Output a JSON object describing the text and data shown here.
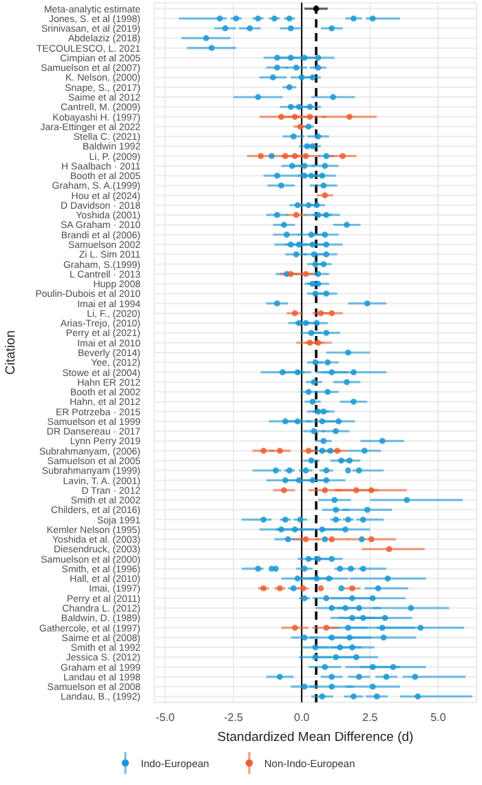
{
  "chart_data": {
    "type": "scatter",
    "orientation": "horizontal",
    "xlabel": "Standardized Mean Difference (d)",
    "ylabel": "Citation",
    "categories": [
      "Meta-analytic estimate",
      "Jones, S. et al (1998)",
      "Srinivasan, et al (2019)",
      "Abdelaziz (2018)",
      "TECOULESCO, L. 2021",
      "Cimpian et al 2005",
      "Samuelson et al (2007)",
      "K. Nelson, (2000)",
      "Snape, S., (2017)",
      "Saime et al 2012",
      "Cantrell, M. (2009)",
      "Kobayashi H. (1997)",
      "Jara-Ettinger et al 2022",
      "Stella C. (2021)",
      "Baldwin 1992",
      "Li, P. (2009)",
      "H Saalbach · 2011",
      "Booth et al 2005",
      "Graham, S. A.(1999)",
      "Hou et al (2024)",
      "D Davidson · 2018",
      "Yoshida (2001)",
      "SA Graham · 2010",
      "Brandi et al (2006)",
      "Samuelson 2002",
      "Zi L. Sim 2011",
      "Graham, S.(1999)",
      "L Cantrell · 2013",
      "Hupp 2008",
      "Poulin-Dubois et al 2010",
      "Imai et al 1994",
      "Li, F., (2020)",
      "Arias-Trejo, (2010)",
      "Perry et al (2021)",
      "Imai et al 2010",
      "Beverly (2014)",
      "Yee, (2012)",
      "Stowe et al (2004)",
      "Hahn ER 2012",
      "Booth et al 2002",
      "Hahn, et al 2012",
      "ER Potrzeba · 2015",
      "Samuelson et al 1999",
      "DR Dansereau · 2017",
      "Lynn Perry 2019",
      "Subrahmanyam, (2006)",
      "Samuelson et al 2005",
      "Subrahmanyam (1999)",
      "Lavin, T. A. (2001)",
      "D Tran · 2012",
      "Smith et al 2002",
      "Childers, et al (2016)",
      "Soja 1991",
      "Kemler Nelson (1995)",
      "Yoshida et al. (2003)",
      "Diesendruck, (2003)",
      "Samuelson et al (2000)",
      "Smith, et al (1996)",
      "Hall, et al (2010)",
      "Imai, (1997)",
      "Perry et al (2011)",
      "Chandra L. (2012)",
      "Baldwin, D. (1989)",
      "Gathercole, et al (1997)",
      "Saime et al (2008)",
      "Smith et al 1992",
      "Jessica S. (2012)",
      "Graham et al 1999",
      "Landau et al 1998",
      "Samuelson et al 2008",
      "Landau, B., (1992)"
    ],
    "xlim": [
      -5.4,
      6.4
    ],
    "xticks": [
      {
        "value": -5,
        "label": "-5.0"
      },
      {
        "value": -2.5,
        "label": "-2.5"
      },
      {
        "value": 0,
        "label": "0.0"
      },
      {
        "value": 2.5,
        "label": "2.5"
      },
      {
        "value": 5,
        "label": "5.0"
      }
    ],
    "grid": true,
    "legend": "bottom",
    "marker": "circle",
    "ref_lines": [
      {
        "axis": "x",
        "value": 0,
        "color": "#000000"
      },
      {
        "axis": "x",
        "value": 0.53,
        "color": "#000000",
        "line_style": "dashed"
      }
    ],
    "series": [
      {
        "name": "Indo-European",
        "color": "#1a98d5",
        "x": [
          "Jones, S. et al (1998)",
          "Jones, S. et al (1998)",
          "Jones, S. et al (1998)",
          "Jones, S. et al (1998)",
          "Jones, S. et al (1998)",
          "Jones, S. et al (1998)",
          "Jones, S. et al (1998)",
          "Srinivasan, et al (2019)",
          "Srinivasan, et al (2019)",
          "Srinivasan, et al (2019)",
          "Srinivasan, et al (2019)",
          "Abdelaziz (2018)",
          "TECOULESCO, L. 2021",
          "Cimpian et al 2005",
          "Cimpian et al 2005",
          "Cimpian et al 2005",
          "Cimpian et al 2005",
          "Samuelson et al (2007)",
          "Samuelson et al (2007)",
          "Samuelson et al (2007)",
          "K. Nelson, (2000)",
          "K. Nelson, (2000)",
          "K. Nelson, (2000)",
          "Snape, S., (2017)",
          "Saime et al 2012",
          "Saime et al 2012",
          "Cantrell, M. (2009)",
          "Cantrell, M. (2009)",
          "Cantrell, M. (2009)",
          "Jara-Ettinger et al 2022",
          "Stella C. (2021)",
          "Stella C. (2021)",
          "Baldwin 1992",
          "Baldwin 1992",
          "Li, P. (2009)",
          "Li, P. (2009)",
          "H Saalbach · 2011",
          "H Saalbach · 2011",
          "H Saalbach · 2011",
          "Booth et al 2005",
          "Booth et al 2005",
          "Booth et al 2005",
          "Booth et al 2005",
          "Graham, S. A.(1999)",
          "Graham, S. A.(1999)",
          "D Davidson · 2018",
          "D Davidson · 2018",
          "D Davidson · 2018",
          "Yoshida (2001)",
          "Yoshida (2001)",
          "Yoshida (2001)",
          "SA Graham · 2010",
          "SA Graham · 2010",
          "Brandi et al (2006)",
          "Brandi et al (2006)",
          "Brandi et al (2006)",
          "Samuelson 2002",
          "Samuelson 2002",
          "Samuelson 2002",
          "Samuelson 2002",
          "Zi L. Sim 2011",
          "Zi L. Sim 2011",
          "Zi L. Sim 2011",
          "Graham, S.(1999)",
          "Graham, S.(1999)",
          "L Cantrell · 2013",
          "L Cantrell · 2013",
          "Hupp 2008",
          "Hupp 2008",
          "Poulin-Dubois et al 2010",
          "Poulin-Dubois et al 2010",
          "Imai et al 1994",
          "Imai et al 1994",
          "Arias-Trejo, (2010)",
          "Arias-Trejo, (2010)",
          "Arias-Trejo, (2010)",
          "Perry et al (2021)",
          "Perry et al (2021)",
          "Beverly (2014)",
          "Yee, (2012)",
          "Yee, (2012)",
          "Stowe et al (2004)",
          "Stowe et al (2004)",
          "Stowe et al (2004)",
          "Stowe et al (2004)",
          "Hahn ER 2012",
          "Hahn ER 2012",
          "Booth et al 2002",
          "Booth et al 2002",
          "Hahn, et al 2012",
          "Hahn, et al 2012",
          "ER Potrzeba · 2015",
          "ER Potrzeba · 2015",
          "Samuelson et al 1999",
          "Samuelson et al 1999",
          "Samuelson et al 1999",
          "Samuelson et al 1999",
          "DR Dansereau · 2017",
          "DR Dansereau · 2017",
          "Lynn Perry 2019",
          "Lynn Perry 2019",
          "Subrahmanyam, (2006)",
          "Subrahmanyam, (2006)",
          "Subrahmanyam, (2006)",
          "Samuelson et al 2005",
          "Samuelson et al 2005",
          "Samuelson et al 2005",
          "Subrahmanyam (1999)",
          "Subrahmanyam (1999)",
          "Subrahmanyam (1999)",
          "Subrahmanyam (1999)",
          "Subrahmanyam (1999)",
          "Subrahmanyam (1999)",
          "Lavin, T. A. (2001)",
          "Lavin, T. A. (2001)",
          "Lavin, T. A. (2001)",
          "Lavin, T. A. (2001)",
          "Smith et al 2002",
          "Smith et al 2002",
          "Childers, et al (2016)",
          "Childers, et al (2016)",
          "Soja 1991",
          "Soja 1991",
          "Soja 1991",
          "Soja 1991",
          "Soja 1991",
          "Soja 1991",
          "Kemler Nelson (1995)",
          "Kemler Nelson (1995)",
          "Kemler Nelson (1995)",
          "Kemler Nelson (1995)",
          "Yoshida et al. (2003)",
          "Yoshida et al. (2003)",
          "Yoshida et al. (2003)",
          "Samuelson et al (2000)",
          "Samuelson et al (2000)",
          "Samuelson et al (2000)",
          "Smith, et al (1996)",
          "Smith, et al (1996)",
          "Smith, et al (1996)",
          "Smith, et al (1996)",
          "Smith, et al (1996)",
          "Smith, et al (1996)",
          "Smith, et al (1996)",
          "Hall, et al (2010)",
          "Hall, et al (2010)",
          "Hall, et al (2010)",
          "Hall, et al (2010)",
          "Imai, (1997)",
          "Imai, (1997)",
          "Imai, (1997)",
          "Perry et al (2011)",
          "Perry et al (2011)",
          "Perry et al (2011)",
          "Perry et al (2011)",
          "Chandra L. (2012)",
          "Chandra L. (2012)",
          "Chandra L. (2012)",
          "Chandra L. (2012)",
          "Baldwin, D. (1989)",
          "Baldwin, D. (1989)",
          "Baldwin, D. (1989)",
          "Gathercole, et al (1997)",
          "Gathercole, et al (1997)",
          "Gathercole, et al (1997)",
          "Saime et al (2008)",
          "Saime et al (2008)",
          "Saime et al (2008)",
          "Saime et al (2008)",
          "Smith et al 1992",
          "Smith et al 1992",
          "Smith et al 1992",
          "Jessica S. (2012)",
          "Jessica S. (2012)",
          "Jessica S. (2012)",
          "Graham et al 1999",
          "Graham et al 1999",
          "Graham et al 1999",
          "Landau et al 1998",
          "Landau et al 1998",
          "Landau et al 1998",
          "Landau et al 1998",
          "Landau et al 1998",
          "Samuelson et al 2008",
          "Samuelson et al 2008",
          "Samuelson et al 2008",
          "Landau, B., (1992)",
          "Landau, B., (1992)",
          "Landau, B., (1992)",
          "Landau, B., (1992)"
        ],
        "values": [
          -3.0,
          -2.4,
          -1.6,
          -1.0,
          -0.45,
          1.9,
          2.6,
          -2.8,
          -1.9,
          -0.4,
          1.1,
          -3.5,
          -3.3,
          -0.9,
          -0.4,
          0.1,
          0.6,
          -0.9,
          -0.2,
          0.6,
          -1.05,
          0.0,
          0.4,
          -0.45,
          -1.6,
          1.15,
          -0.4,
          -0.1,
          0.3,
          0.25,
          -0.3,
          0.6,
          0.2,
          0.4,
          -1.1,
          0.9,
          -0.35,
          0.1,
          0.85,
          -0.9,
          0.1,
          0.35,
          0.75,
          -0.75,
          0.8,
          -0.15,
          0.25,
          0.55,
          -0.9,
          0.6,
          0.9,
          -0.65,
          1.65,
          -0.55,
          0.35,
          0.85,
          -0.4,
          -0.1,
          0.4,
          0.9,
          -0.2,
          0.45,
          0.9,
          0.5,
          0.8,
          -0.55,
          0.6,
          0.4,
          0.6,
          0.5,
          0.9,
          -0.9,
          2.4,
          -0.1,
          0.15,
          0.55,
          0.35,
          0.9,
          1.7,
          0.5,
          0.95,
          -0.7,
          -0.15,
          1.1,
          1.9,
          0.45,
          1.65,
          0.25,
          0.95,
          0.4,
          1.9,
          0.6,
          0.8,
          -0.6,
          -0.15,
          0.75,
          1.35,
          0.45,
          1.25,
          0.8,
          2.95,
          0.75,
          1.05,
          2.3,
          0.35,
          1.45,
          1.75,
          -0.95,
          -0.45,
          0.15,
          0.9,
          1.7,
          2.1,
          -0.6,
          -0.1,
          0.4,
          0.9,
          1.2,
          3.85,
          1.25,
          2.4,
          -1.4,
          -0.6,
          -0.05,
          1.25,
          1.7,
          2.25,
          -0.75,
          -0.25,
          0.75,
          1.6,
          -0.5,
          0.85,
          2.2,
          0.25,
          0.6,
          1.1,
          -1.6,
          -1.1,
          -0.95,
          0.1,
          1.4,
          1.8,
          2.25,
          -0.15,
          0.55,
          1.0,
          3.15,
          -0.3,
          1.45,
          2.8,
          0.1,
          0.9,
          1.85,
          2.6,
          1.1,
          1.6,
          2.1,
          4.0,
          1.85,
          2.25,
          3.05,
          1.7,
          2.95,
          4.35,
          0.1,
          1.1,
          1.75,
          3.0,
          0.5,
          1.4,
          1.85,
          0.5,
          1.25,
          2.0,
          0.85,
          2.6,
          3.35,
          -0.8,
          1.1,
          2.1,
          3.1,
          4.15,
          0.1,
          1.1,
          2.6,
          0.75,
          1.9,
          2.75,
          4.25
        ],
        "errors": [
          [
            -4.5,
            -2.75
          ],
          0.2,
          0.2,
          0.2,
          0.2,
          0.3,
          [
            2.35,
            3.6
          ],
          0.4,
          0.4,
          0.4,
          0.4,
          0.9,
          0.9,
          0.5,
          0.4,
          0.4,
          0.6,
          0.4,
          0.4,
          0.3,
          0.5,
          0.4,
          0.3,
          0.25,
          0.9,
          0.8,
          0.4,
          0.4,
          0.4,
          0.2,
          0.4,
          0.4,
          0.3,
          0.3,
          null,
          0.3,
          0.4,
          0.4,
          0.5,
          0.5,
          0.5,
          0.5,
          0.5,
          0.5,
          0.5,
          0.3,
          0.3,
          0.3,
          0.4,
          0.5,
          0.5,
          0.4,
          0.5,
          0.5,
          0.5,
          0.5,
          0.6,
          0.5,
          0.5,
          0.6,
          0.4,
          0.4,
          0.4,
          0.3,
          0.3,
          0.4,
          0.4,
          0.3,
          0.4,
          0.3,
          0.4,
          0.4,
          0.7,
          0.4,
          0.4,
          0.4,
          0.4,
          0.5,
          0.8,
          0.3,
          0.4,
          0.8,
          0.5,
          0.6,
          1.2,
          0.3,
          0.5,
          0.3,
          0.4,
          0.3,
          0.5,
          0.4,
          0.4,
          0.6,
          0.5,
          0.6,
          0.6,
          0.4,
          0.5,
          0.3,
          0.8,
          0.4,
          0.4,
          0.6,
          0.3,
          0.4,
          0.4,
          [
            -1.8,
            -0.75
          ],
          0.2,
          0.25,
          0.25,
          null,
          [
            1.85,
            3.0
          ],
          0.7,
          0.6,
          0.6,
          0.7,
          0.6,
          [
            2.5,
            5.9
          ],
          0.5,
          0.9,
          [
            -2.2,
            -1.1
          ],
          0.2,
          0.25,
          0.2,
          0.2,
          [
            2.0,
            3.0
          ],
          0.8,
          0.7,
          0.8,
          0.9,
          0.5,
          null,
          null,
          0.4,
          0.4,
          0.4,
          [
            -2.2,
            -1.4
          ],
          null,
          null,
          0.3,
          0.2,
          0.2,
          [
            2.05,
            3.1
          ],
          0.6,
          0.6,
          0.7,
          1.4,
          0.2,
          null,
          [
            2.3,
            3.9
          ],
          0.2,
          0.5,
          0.8,
          1.2,
          0.6,
          0.6,
          0.8,
          1.4,
          0.8,
          0.9,
          1.0,
          0.7,
          1.2,
          1.6,
          0.5,
          0.8,
          0.8,
          1.2,
          0.5,
          0.8,
          0.8,
          0.6,
          0.7,
          0.8,
          0.6,
          1.0,
          1.2,
          0.5,
          0.4,
          0.4,
          0.4,
          [
            3.7,
            6.0
          ],
          0.5,
          0.8,
          1.0,
          0.4,
          0.35,
          0.4,
          [
            3.6,
            6.25
          ]
        ]
      },
      {
        "name": "Non-Indo-European",
        "color": "#ec5e2f",
        "x": [
          "Kobayashi H. (1997)",
          "Kobayashi H. (1997)",
          "Kobayashi H. (1997)",
          "Kobayashi H. (1997)",
          "Jara-Ettinger et al 2022",
          "Li, P. (2009)",
          "Li, P. (2009)",
          "Li, P. (2009)",
          "Li, P. (2009)",
          "Li, P. (2009)",
          "Hou et al (2024)",
          "Yoshida (2001)",
          "L Cantrell · 2013",
          "L Cantrell · 2013",
          "Li, F., (2020)",
          "Li, F., (2020)",
          "Li, F., (2020)",
          "Imai et al 2010",
          "Imai et al 2010",
          "Subrahmanyam, (2006)",
          "Subrahmanyam, (2006)",
          "Subrahmanyam, (2006)",
          "Subrahmanyam, (2006)",
          "D Tran · 2012",
          "D Tran · 2012",
          "D Tran · 2012",
          "D Tran · 2012",
          "Yoshida et al. (2003)",
          "Yoshida et al. (2003)",
          "Yoshida et al. (2003)",
          "Diesendruck, (2003)",
          "Imai, (1997)",
          "Imai, (1997)",
          "Imai, (1997)",
          "Imai, (1997)",
          "Imai, (1997)",
          "Gathercole, et al (1997)",
          "Gathercole, et al (1997)"
        ],
        "values": [
          -0.75,
          -0.25,
          0.3,
          1.75,
          -0.05,
          -1.5,
          -0.6,
          -0.25,
          0.15,
          1.5,
          0.85,
          -0.2,
          -0.4,
          0.15,
          -0.25,
          0.7,
          1.1,
          0.3,
          0.6,
          -1.4,
          -0.8,
          0.25,
          1.3,
          -0.65,
          0.85,
          2.0,
          2.55,
          0.15,
          1.1,
          2.55,
          3.2,
          -1.4,
          -0.8,
          0.05,
          0.7,
          1.85,
          -0.25,
          0.9
        ],
        "errors": [
          0.8,
          0.6,
          0.6,
          1.0,
          0.25,
          0.5,
          0.5,
          0.5,
          0.5,
          0.5,
          0.3,
          0.35,
          0.4,
          0.4,
          0.3,
          0.3,
          0.4,
          0.5,
          0.5,
          0.4,
          0.4,
          0.3,
          0.4,
          0.4,
          0.6,
          0.8,
          1.3,
          0.5,
          0.6,
          0.9,
          [
            2.2,
            4.5
          ],
          0.2,
          0.2,
          0.2,
          null,
          0.3,
          0.5,
          0.5
        ]
      },
      {
        "color": "#000000",
        "x": [
          "Meta-analytic estimate"
        ],
        "values": [
          0.53
        ],
        "errors": [
          [
            0.1,
            0.95
          ]
        ]
      }
    ]
  }
}
